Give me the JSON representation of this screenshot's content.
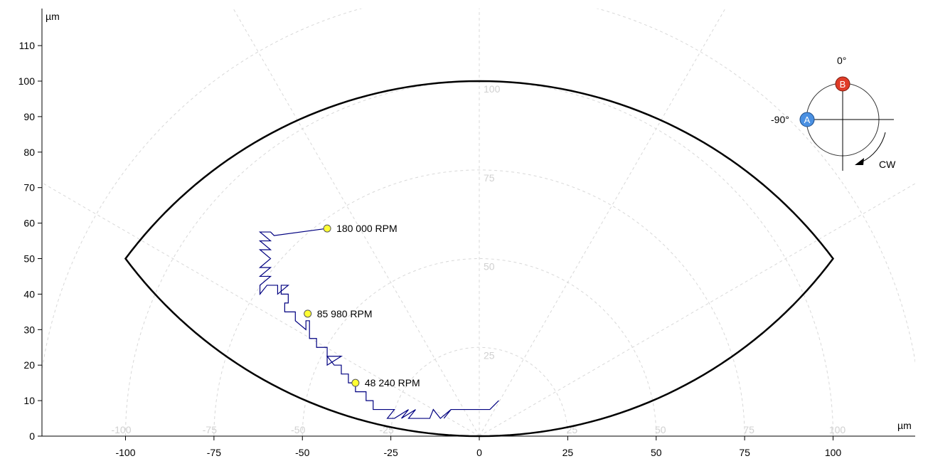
{
  "chart_data": {
    "type": "scatter",
    "x_unit": "µm",
    "y_unit": "µm",
    "xlim": [
      -122,
      123
    ],
    "ylim": [
      0,
      118
    ],
    "x_ticks": [
      -100,
      -75,
      -50,
      -25,
      0,
      25,
      50,
      75,
      100
    ],
    "y_ticks": [
      0,
      10,
      20,
      30,
      40,
      50,
      60,
      70,
      80,
      90,
      100,
      110
    ],
    "polar_grid": {
      "radii": [
        25,
        50,
        75,
        100
      ],
      "radius_labels": [
        "25",
        "50",
        "75",
        "100"
      ],
      "baseline_labels": [
        "-100",
        "-75",
        "-50",
        "-25",
        "25",
        "50",
        "75",
        "100"
      ],
      "spoke_angles_deg": [
        -60,
        -30,
        0,
        30,
        60
      ],
      "style": "dashed light gray"
    },
    "clearance_boundary": {
      "description_shape": "lens",
      "points": [
        [
          -100,
          50
        ],
        [
          0,
          100
        ],
        [
          100,
          50
        ],
        [
          0,
          0
        ]
      ]
    },
    "orbit_path": [
      [
        5.5,
        10
      ],
      [
        3,
        7.5
      ],
      [
        -8,
        7.5
      ],
      [
        -10,
        5
      ],
      [
        -8,
        7.5
      ],
      [
        -11,
        5
      ],
      [
        -13,
        7.5
      ],
      [
        -14,
        5
      ],
      [
        -20,
        5
      ],
      [
        -18,
        7.5
      ],
      [
        -22,
        5
      ],
      [
        -20,
        7.5
      ],
      [
        -24,
        5
      ],
      [
        -26,
        5
      ],
      [
        -24,
        7.5
      ],
      [
        -30,
        7.5
      ],
      [
        -30,
        10
      ],
      [
        -32,
        10
      ],
      [
        -32,
        12.5
      ],
      [
        -35,
        12.5
      ],
      [
        -35,
        15
      ],
      [
        -37,
        15
      ],
      [
        -37,
        17.5
      ],
      [
        -39,
        17.5
      ],
      [
        -39,
        20
      ],
      [
        -41,
        20
      ],
      [
        -43,
        22.5
      ],
      [
        -39,
        22.5
      ],
      [
        -43,
        20
      ],
      [
        -43,
        25
      ],
      [
        -46,
        25
      ],
      [
        -46,
        27.5
      ],
      [
        -48,
        27.5
      ],
      [
        -48,
        30
      ],
      [
        -48,
        32.5
      ],
      [
        -49,
        32.5
      ],
      [
        -49,
        30
      ],
      [
        -52,
        32.5
      ],
      [
        -52,
        35
      ],
      [
        -55,
        35
      ],
      [
        -55,
        37.5
      ],
      [
        -54,
        37.5
      ],
      [
        -54,
        40
      ],
      [
        -56,
        40
      ],
      [
        -56,
        42.5
      ],
      [
        -54,
        42.5
      ],
      [
        -57,
        40
      ],
      [
        -57,
        42.5
      ],
      [
        -60,
        42.5
      ],
      [
        -62,
        40
      ],
      [
        -62,
        42.5
      ],
      [
        -59,
        45
      ],
      [
        -62,
        45
      ],
      [
        -59,
        47.5
      ],
      [
        -62,
        47.5
      ],
      [
        -59,
        50
      ],
      [
        -62,
        52.5
      ],
      [
        -59,
        52.5
      ],
      [
        -62,
        55
      ],
      [
        -59,
        55
      ],
      [
        -62,
        57.5
      ],
      [
        -59,
        57.5
      ],
      [
        -58,
        56.5
      ],
      [
        -43,
        58.5
      ]
    ],
    "markers": [
      {
        "x": -43,
        "y": 58.5,
        "label": "180 000 RPM"
      },
      {
        "x": -48.5,
        "y": 34.5,
        "label": "85 980 RPM"
      },
      {
        "x": -35,
        "y": 15,
        "label": "48 240 RPM"
      }
    ],
    "marker_color": "#ffff33",
    "path_color": "#000080",
    "boundary_color": "#000000"
  },
  "compass": {
    "zero_label": "0°",
    "minus90_label": "-90°",
    "direction_label": "CW",
    "sensor_a": {
      "letter": "A",
      "color": "#4a90e2"
    },
    "sensor_b": {
      "letter": "B",
      "color": "#e03c28"
    }
  },
  "axes": {
    "x_unit_label": "µm",
    "y_unit_label": "µm"
  }
}
